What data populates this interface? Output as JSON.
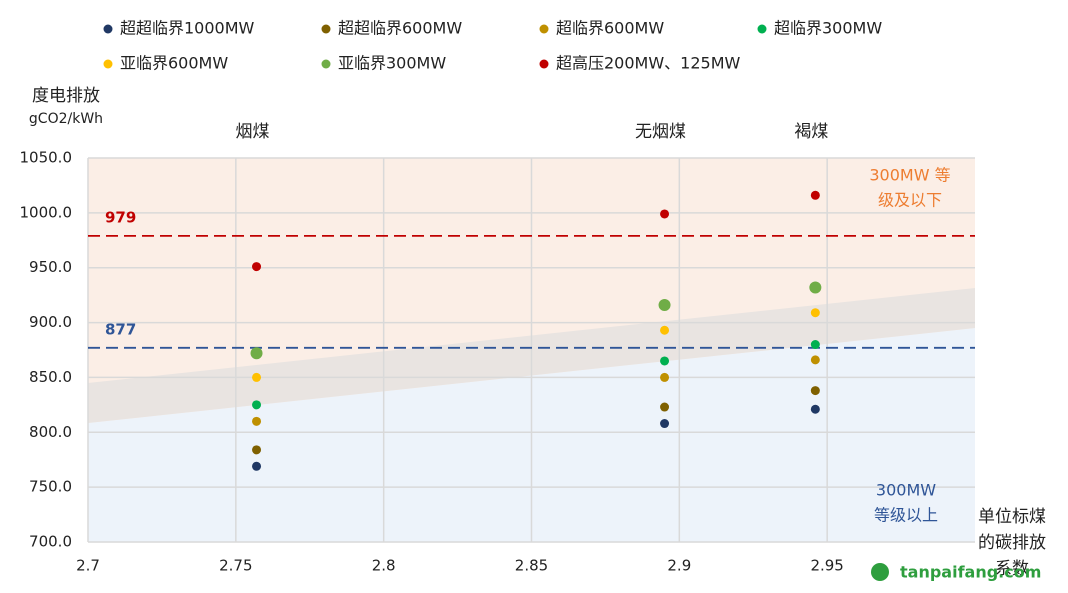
{
  "chart_data": {
    "type": "scatter",
    "y_label": [
      "度电排放",
      "gCO2/kWh"
    ],
    "x_label": [
      "单位标煤",
      "的碳排放",
      "系数"
    ],
    "x": [
      2.757,
      2.895,
      2.946
    ],
    "coal_types": [
      "烟煤",
      "无烟煤",
      "褐煤"
    ],
    "series": [
      {
        "name": "超超临界1000MW",
        "color": "#203864",
        "values": [
          769,
          808,
          821
        ]
      },
      {
        "name": "超超临界600MW",
        "color": "#7f6000",
        "values": [
          784,
          823,
          838
        ]
      },
      {
        "name": "超临界600MW",
        "color": "#bf9000",
        "values": [
          810,
          850,
          866
        ]
      },
      {
        "name": "超临界300MW",
        "color": "#00b050",
        "values": [
          825,
          865,
          880
        ]
      },
      {
        "name": "亚临界600MW",
        "color": "#ffc000",
        "values": [
          850,
          893,
          909
        ]
      },
      {
        "name": "亚临界300MW",
        "color": "#70ad47",
        "values": [
          872,
          916,
          932
        ]
      },
      {
        "name": "超高压200MW、125MW",
        "color": "#c00000",
        "values": [
          951,
          999,
          1016
        ]
      }
    ],
    "reference_lines": [
      {
        "value": 979,
        "label": "979",
        "color": "#c00000"
      },
      {
        "value": 877,
        "label": "877",
        "color": "#2f5597"
      }
    ],
    "region_labels": [
      {
        "lines": [
          "300MW 等",
          "级及以下"
        ],
        "color": "#ed7d31"
      },
      {
        "lines": [
          "300MW",
          "等级以上"
        ],
        "color": "#2f5597"
      }
    ],
    "xlim": [
      2.7,
      3.0
    ],
    "xticks": [
      2.7,
      2.75,
      2.8,
      2.85,
      2.9,
      2.95
    ],
    "ylim": [
      700,
      1050
    ],
    "yticks": [
      {
        "value": 700,
        "label": "700.0"
      },
      {
        "value": 750,
        "label": "750.0"
      },
      {
        "value": 800,
        "label": "800.0"
      },
      {
        "value": 850,
        "label": "850.0"
      },
      {
        "value": 900,
        "label": "900.0"
      },
      {
        "value": 950,
        "label": "950.0"
      },
      {
        "value": 1000,
        "label": "1000.0"
      },
      {
        "value": 1050,
        "label": "1050.0"
      }
    ],
    "grid": true,
    "watermark": "tanpaifang.com"
  }
}
